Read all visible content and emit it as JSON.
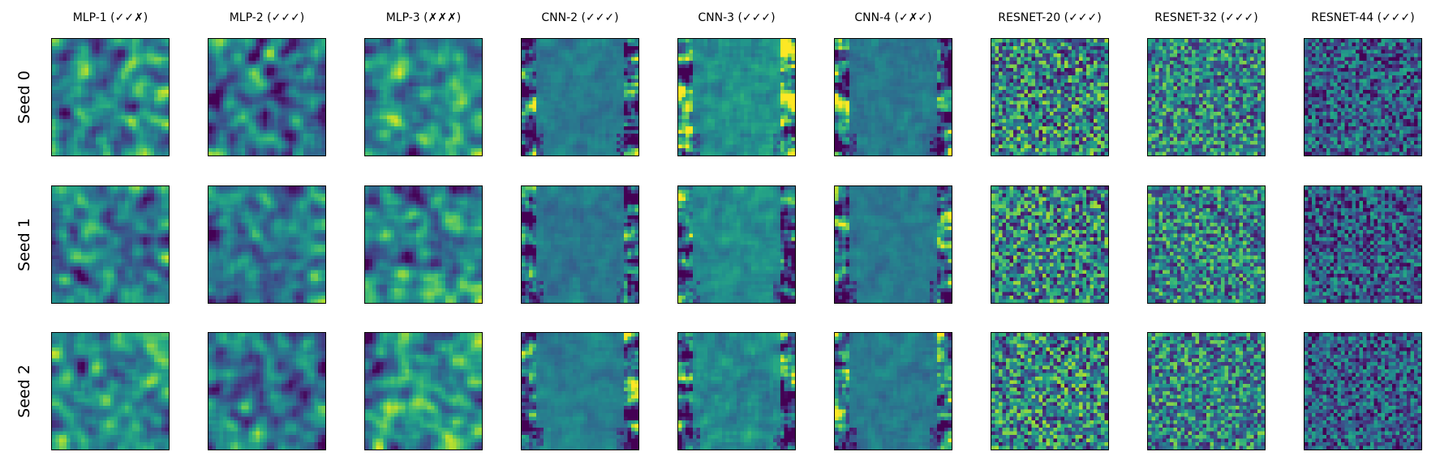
{
  "chart_data": {
    "type": "heatmap",
    "colormap": "viridis",
    "columns": [
      "MLP-1 (✓✓✗)",
      "MLP-2 (✓✓✓)",
      "MLP-3 (✗✗✗)",
      "CNN-2 (✓✓✓)",
      "CNN-3 (✓✓✓)",
      "CNN-4 (✓✗✓)",
      "RESNET-20 (✓✓✓)",
      "RESNET-32 (✓✓✓)",
      "RESNET-44 (✓✓✓)"
    ],
    "rows": [
      "Seed 0",
      "Seed 1",
      "Seed 2"
    ],
    "axis_ticks": false
  }
}
